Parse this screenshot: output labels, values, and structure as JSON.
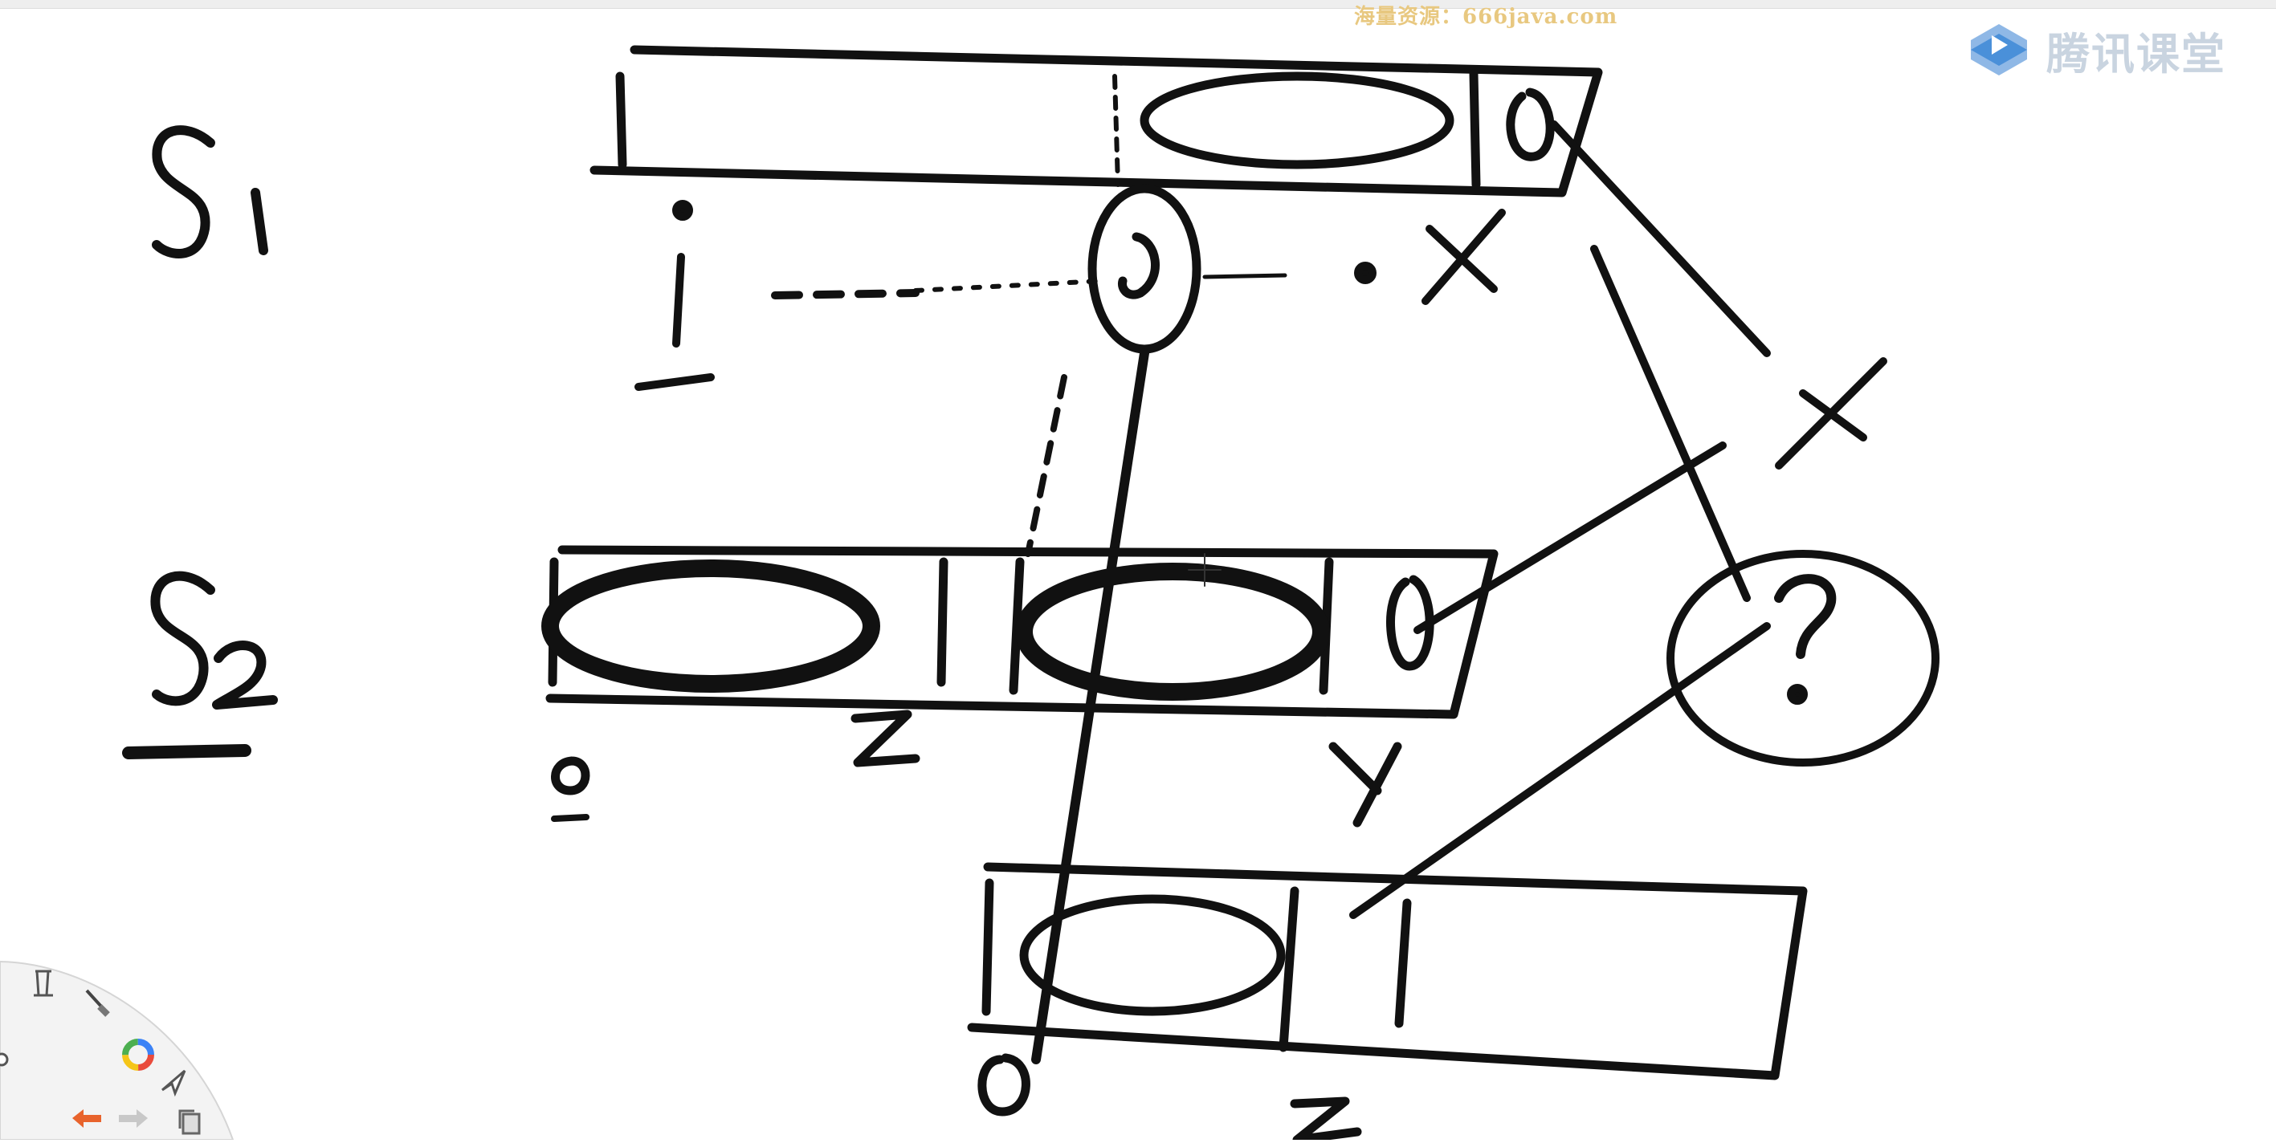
{
  "watermark": {
    "text": "海量资源：666java.com",
    "color": "#e8c880"
  },
  "brand": {
    "name": "腾讯课堂",
    "icon": "play-logo-icon",
    "accent": "#4a90d9",
    "text_color": "#c9d4e0"
  },
  "whiteboard": {
    "labels": {
      "s1": "S1",
      "s2": "S2",
      "i_mark": "i",
      "j_mark": "j",
      "x_mark": "x",
      "o_s2": "0",
      "z_s2": "z",
      "y_s2": "y",
      "o_bottom": "0",
      "z_bottom": "z",
      "question": "?"
    }
  },
  "toolbar": {
    "tools": [
      {
        "name": "pen-stand-icon"
      },
      {
        "name": "brush-icon"
      },
      {
        "name": "color-wheel-icon"
      },
      {
        "name": "select-cursor-icon"
      },
      {
        "name": "undo-icon"
      },
      {
        "name": "redo-icon"
      },
      {
        "name": "copy-icon"
      }
    ]
  }
}
